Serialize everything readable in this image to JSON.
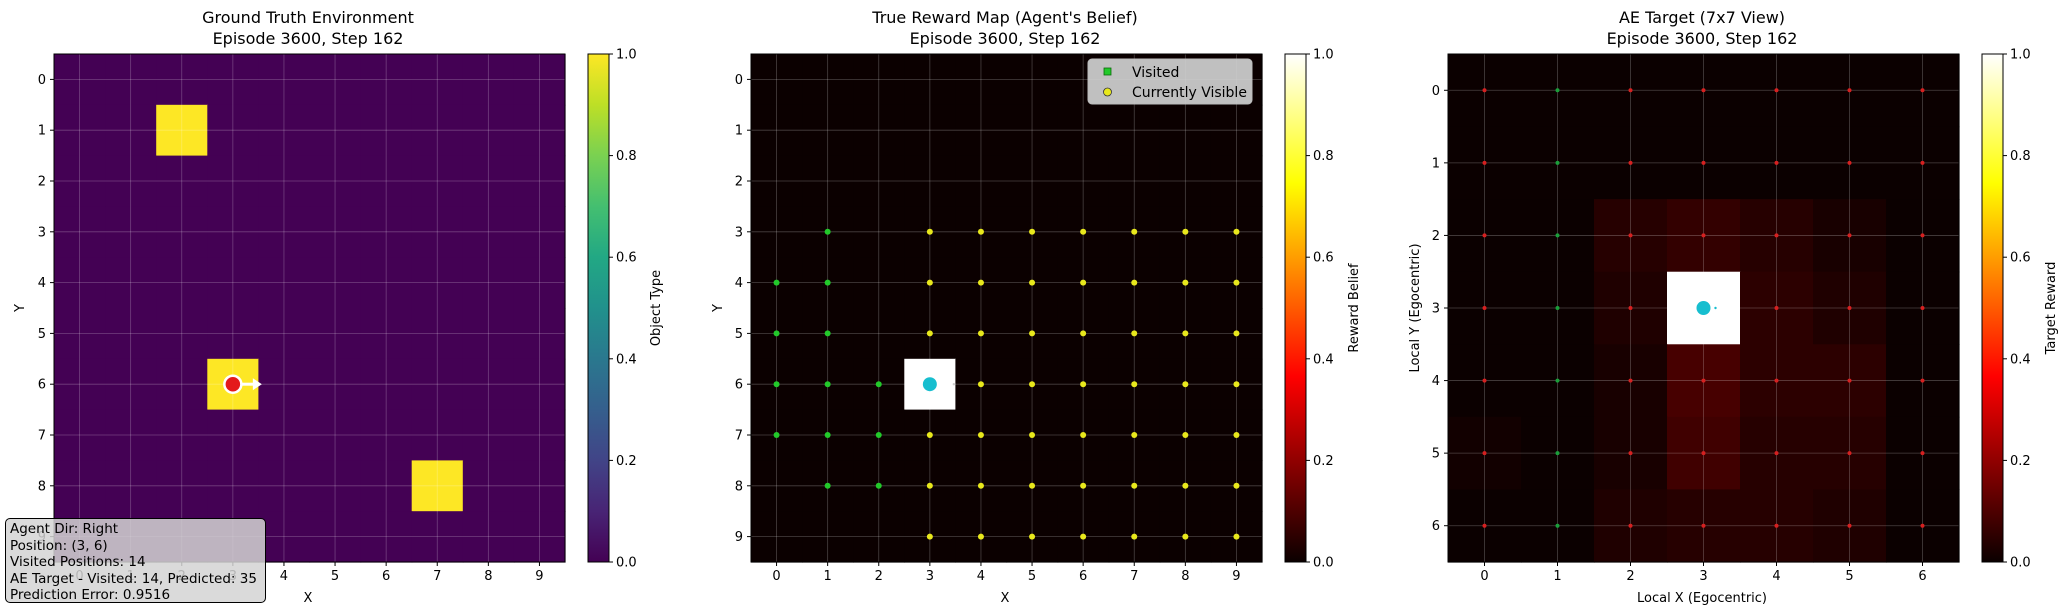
{
  "panels": [
    {
      "title_line1": "Ground Truth Environment",
      "title_line2": "Episode 3600, Step 162",
      "xlabel": "X",
      "ylabel": "Y",
      "colorbar_label": "Object Type",
      "colorbar_ticks": [
        "0.0",
        "0.2",
        "0.4",
        "0.6",
        "0.8",
        "1.0"
      ]
    },
    {
      "title_line1": "True Reward Map (Agent's Belief)",
      "title_line2": "Episode 3600, Step 162",
      "xlabel": "X",
      "ylabel": "Y",
      "colorbar_label": "Reward Belief",
      "colorbar_ticks": [
        "0.0",
        "0.2",
        "0.4",
        "0.6",
        "0.8",
        "1.0"
      ],
      "legend": [
        {
          "label": "Visited",
          "marker": "square",
          "color": "#22c92a"
        },
        {
          "label": "Currently Visible",
          "marker": "circle",
          "color": "#e8e81c"
        }
      ]
    },
    {
      "title_line1": "AE Target (7x7 View)",
      "title_line2": "Episode 3600, Step 162",
      "xlabel": "Local X (Egocentric)",
      "ylabel": "Local Y (Egocentric)",
      "colorbar_label": "Target Reward",
      "colorbar_ticks": [
        "0.0",
        "0.2",
        "0.4",
        "0.6",
        "0.8",
        "1.0"
      ]
    }
  ],
  "info_box": {
    "lines": [
      "Agent Dir: Right",
      "Position: (3, 6)",
      "Visited Positions: 14",
      "AE Target - Visited: 14, Predicted: 35",
      "Prediction Error: 0.9516"
    ]
  },
  "chart_data": [
    {
      "type": "heatmap",
      "title": "Ground Truth Environment\nEpisode 3600, Step 162",
      "xlabel": "X",
      "ylabel": "Y",
      "x_ticks": [
        "0",
        "1",
        "2",
        "3",
        "4",
        "5",
        "6",
        "7",
        "8",
        "9"
      ],
      "y_ticks": [
        "0",
        "1",
        "2",
        "3",
        "4",
        "5",
        "6",
        "7",
        "8",
        "9"
      ],
      "grid_size": 10,
      "colormap": "viridis",
      "colorbar_label": "Object Type",
      "vmin": 0,
      "vmax": 1,
      "cells": [
        {
          "x": 2,
          "y": 1,
          "value": 1
        },
        {
          "x": 3,
          "y": 6,
          "value": 1
        },
        {
          "x": 7,
          "y": 8,
          "value": 1
        }
      ],
      "agent": {
        "x": 3,
        "y": 6,
        "direction": "Right",
        "color": "#e41a1c"
      }
    },
    {
      "type": "heatmap",
      "title": "True Reward Map (Agent's Belief)\nEpisode 3600, Step 162",
      "xlabel": "X",
      "ylabel": "Y",
      "x_ticks": [
        "0",
        "1",
        "2",
        "3",
        "4",
        "5",
        "6",
        "7",
        "8",
        "9"
      ],
      "y_ticks": [
        "0",
        "1",
        "2",
        "3",
        "4",
        "5",
        "6",
        "7",
        "8",
        "9"
      ],
      "grid_size": 10,
      "colormap": "hot",
      "colorbar_label": "Reward Belief",
      "vmin": 0,
      "vmax": 1,
      "cells": [
        {
          "x": 3,
          "y": 6,
          "value": 1
        }
      ],
      "visited": [
        [
          1,
          3
        ],
        [
          0,
          4
        ],
        [
          1,
          4
        ],
        [
          0,
          5
        ],
        [
          1,
          5
        ],
        [
          0,
          6
        ],
        [
          1,
          6
        ],
        [
          2,
          6
        ],
        [
          0,
          7
        ],
        [
          1,
          7
        ],
        [
          2,
          7
        ],
        [
          1,
          8
        ],
        [
          2,
          8
        ]
      ],
      "visible": [
        [
          3,
          3
        ],
        [
          4,
          3
        ],
        [
          5,
          3
        ],
        [
          6,
          3
        ],
        [
          7,
          3
        ],
        [
          8,
          3
        ],
        [
          9,
          3
        ],
        [
          3,
          4
        ],
        [
          4,
          4
        ],
        [
          5,
          4
        ],
        [
          6,
          4
        ],
        [
          7,
          4
        ],
        [
          8,
          4
        ],
        [
          9,
          4
        ],
        [
          3,
          5
        ],
        [
          4,
          5
        ],
        [
          5,
          5
        ],
        [
          6,
          5
        ],
        [
          7,
          5
        ],
        [
          8,
          5
        ],
        [
          9,
          5
        ],
        [
          4,
          6
        ],
        [
          5,
          6
        ],
        [
          6,
          6
        ],
        [
          7,
          6
        ],
        [
          8,
          6
        ],
        [
          9,
          6
        ],
        [
          3,
          7
        ],
        [
          4,
          7
        ],
        [
          5,
          7
        ],
        [
          6,
          7
        ],
        [
          7,
          7
        ],
        [
          8,
          7
        ],
        [
          9,
          7
        ],
        [
          3,
          8
        ],
        [
          4,
          8
        ],
        [
          5,
          8
        ],
        [
          6,
          8
        ],
        [
          7,
          8
        ],
        [
          8,
          8
        ],
        [
          9,
          8
        ],
        [
          3,
          9
        ],
        [
          4,
          9
        ],
        [
          5,
          9
        ],
        [
          6,
          9
        ],
        [
          7,
          9
        ],
        [
          8,
          9
        ],
        [
          9,
          9
        ]
      ],
      "agent": {
        "x": 3,
        "y": 6,
        "color": "#17becf"
      },
      "legend": [
        "Visited",
        "Currently Visible"
      ],
      "legend_position": "upper right"
    },
    {
      "type": "heatmap",
      "title": "AE Target (7x7 View)\nEpisode 3600, Step 162",
      "xlabel": "Local X (Egocentric)",
      "ylabel": "Local Y (Egocentric)",
      "x_ticks": [
        "0",
        "1",
        "2",
        "3",
        "4",
        "5",
        "6"
      ],
      "y_ticks": [
        "0",
        "1",
        "2",
        "3",
        "4",
        "5",
        "6"
      ],
      "grid_size": 7,
      "colormap": "hot",
      "colorbar_label": "Target Reward",
      "vmin": 0,
      "vmax": 1,
      "values": [
        [
          0.0,
          0.0,
          0.0,
          0.0,
          0.0,
          0.0,
          0.0
        ],
        [
          0.0,
          0.0,
          0.0,
          0.0,
          0.0,
          0.0,
          0.0
        ],
        [
          0.0,
          0.0,
          0.04,
          0.06,
          0.04,
          0.02,
          0.0
        ],
        [
          0.0,
          0.0,
          0.03,
          1.0,
          0.05,
          0.03,
          0.0
        ],
        [
          0.0,
          0.0,
          0.02,
          0.09,
          0.05,
          0.05,
          0.0
        ],
        [
          0.01,
          0.0,
          0.02,
          0.08,
          0.04,
          0.04,
          0.0
        ],
        [
          0.0,
          0.0,
          0.03,
          0.04,
          0.04,
          0.03,
          0.0
        ]
      ],
      "red_dot_columns": [
        0,
        2,
        3,
        4,
        5,
        6
      ],
      "green_dot_columns": [
        1
      ],
      "agent": {
        "x": 3,
        "y": 3,
        "color": "#17becf"
      }
    }
  ]
}
